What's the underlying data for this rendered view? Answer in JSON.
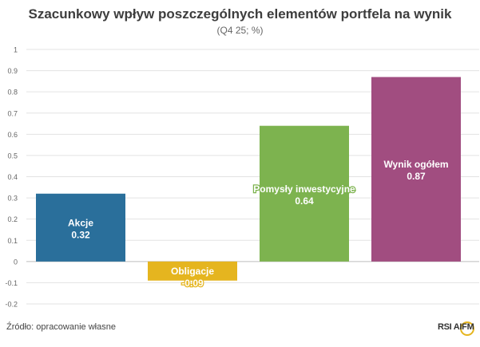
{
  "title": "Szacunkowy wpływ poszczególnych elementów portfela na wynik",
  "subtitle": "(Q4 25; %)",
  "source": "Źródło: opracowanie własne",
  "logo_text": "RSI AIFM",
  "chart_data": {
    "type": "bar",
    "categories": [
      "Akcje",
      "Obligacje",
      "Pomysły inwestycyjne",
      "Wynik ogółem"
    ],
    "values": [
      0.32,
      -0.09,
      0.64,
      0.87
    ],
    "value_labels": [
      "0.32",
      "-0.09",
      "0.64",
      "0.87"
    ],
    "colors": [
      "#2a6f9b",
      "#e5b51f",
      "#7db34f",
      "#a14d80"
    ],
    "ylim": [
      -0.2,
      1.0
    ],
    "yticks": [
      -0.2,
      -0.1,
      0,
      0.1,
      0.2,
      0.3,
      0.4,
      0.5,
      0.6,
      0.7,
      0.8,
      0.9,
      1
    ],
    "ytick_labels": [
      "-0.2",
      "-0.1",
      "0",
      "0.1",
      "0.2",
      "0.3",
      "0.4",
      "0.5",
      "0.6",
      "0.7",
      "0.8",
      "0.9",
      "1"
    ],
    "grid": true,
    "legend": "none"
  }
}
